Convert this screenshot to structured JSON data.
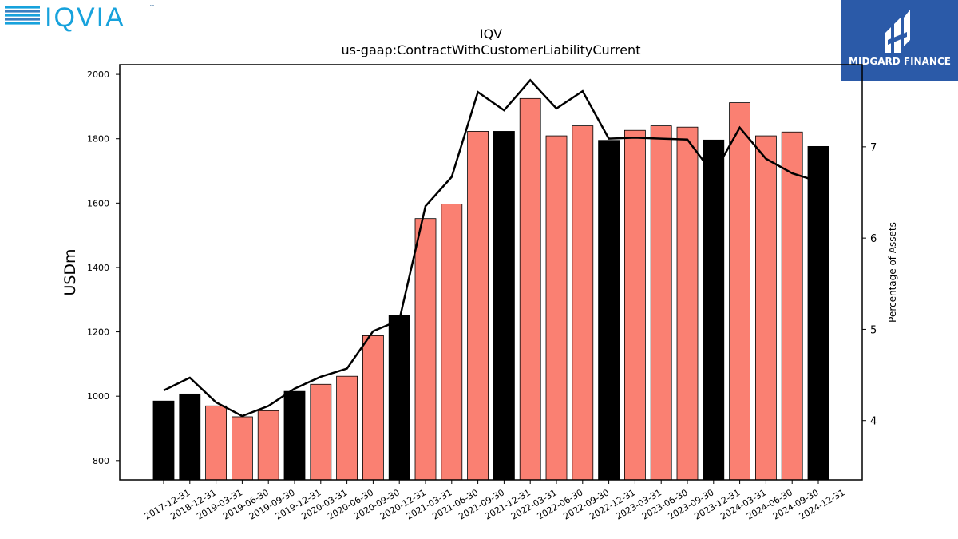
{
  "brand": {
    "left_logo": "IQVIA",
    "left_logo_tm": "™",
    "right_logo": "MIDGARD FINANCE",
    "colors": {
      "iqvia_blue": "#17a2dc",
      "iqvia_navy": "#0b4f8a",
      "midgard_bg": "#2b5aa8"
    }
  },
  "chart_data": {
    "type": "bar",
    "title": "IQV",
    "subtitle": "us-gaap:ContractWithCustomerLiabilityCurrent",
    "ylabel": "USDm",
    "y2label": "Percentage of Assets",
    "ylim": [
      740,
      2030
    ],
    "y_ticks": [
      800,
      1000,
      1200,
      1400,
      1600,
      1800,
      2000
    ],
    "y2lim": [
      3.35,
      7.9
    ],
    "y2_ticks": [
      4,
      5,
      6,
      7
    ],
    "categories": [
      "2017-12-31",
      "2018-12-31",
      "2019-03-31",
      "2019-06-30",
      "2019-09-30",
      "2019-12-31",
      "2020-03-31",
      "2020-06-30",
      "2020-09-30",
      "2020-12-31",
      "2021-03-31",
      "2021-06-30",
      "2021-09-30",
      "2021-12-31",
      "2022-03-31",
      "2022-06-30",
      "2022-09-30",
      "2022-12-31",
      "2023-03-31",
      "2023-06-30",
      "2023-09-30",
      "2023-12-31",
      "2024-03-31",
      "2024-06-30",
      "2024-09-30",
      "2024-12-31"
    ],
    "values": [
      985,
      1007,
      970,
      936,
      955,
      1015,
      1037,
      1062,
      1188,
      1252,
      1552,
      1597,
      1823,
      1823,
      1925,
      1809,
      1840,
      1795,
      1826,
      1840,
      1836,
      1796,
      1912,
      1809,
      1821,
      1776
    ],
    "bar_colors": {
      "annual": "#000000",
      "quarterly": "#fa8072"
    },
    "annual_flags": [
      true,
      true,
      false,
      false,
      false,
      true,
      false,
      false,
      false,
      true,
      false,
      false,
      false,
      true,
      false,
      false,
      false,
      true,
      false,
      false,
      false,
      true,
      false,
      false,
      false,
      true
    ],
    "line": {
      "axis": "right",
      "color": "#000000",
      "values": [
        4.33,
        4.47,
        4.2,
        4.05,
        4.16,
        4.35,
        4.48,
        4.57,
        4.98,
        5.1,
        6.35,
        6.67,
        7.6,
        7.4,
        7.73,
        7.42,
        7.61,
        7.09,
        7.1,
        7.09,
        7.08,
        6.7,
        7.21,
        6.87,
        6.71,
        6.62
      ]
    },
    "grid": false,
    "legend": "none"
  }
}
